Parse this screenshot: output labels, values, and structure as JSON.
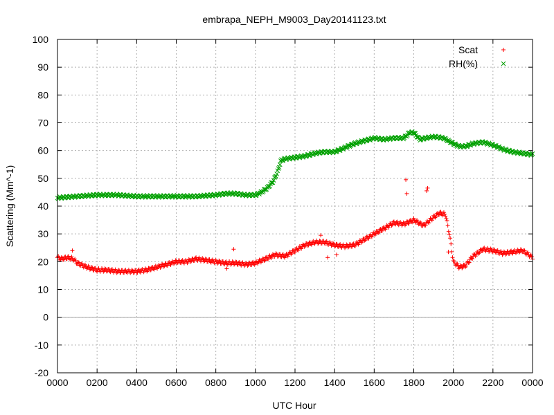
{
  "chart_data": {
    "type": "scatter",
    "title": "embrapa_NEPH_M9003_Day20141123.txt",
    "xlabel": "UTC Hour",
    "ylabel": "Scattering (Mm^-1)",
    "xlim": [
      0,
      24
    ],
    "ylim": [
      -20,
      100
    ],
    "x_ticks": [
      0,
      2,
      4,
      6,
      8,
      10,
      12,
      14,
      16,
      18,
      20,
      22,
      24
    ],
    "x_tick_labels": [
      "0000",
      "0200",
      "0400",
      "0600",
      "0800",
      "1000",
      "1200",
      "1400",
      "1600",
      "1800",
      "2000",
      "2200",
      "0000"
    ],
    "y_ticks": [
      -20,
      -10,
      0,
      10,
      20,
      30,
      40,
      50,
      60,
      70,
      80,
      90,
      100
    ],
    "y_tick_labels": [
      "-20",
      "-10",
      "0",
      "10",
      "20",
      "30",
      "40",
      "50",
      "60",
      "70",
      "80",
      "90",
      "100"
    ],
    "grid": true,
    "zero_line": true,
    "legend_position": "top-right",
    "series": [
      {
        "name": "Scat",
        "marker": "plus",
        "color": "#ff0000",
        "x": [
          0,
          0.2,
          0.5,
          0.8,
          1.0,
          1.5,
          2.0,
          2.5,
          3.0,
          3.5,
          4.0,
          4.5,
          5.0,
          5.5,
          6.0,
          6.5,
          7.0,
          7.5,
          8.0,
          8.5,
          9.0,
          9.5,
          10.0,
          10.5,
          11.0,
          11.5,
          12.0,
          12.5,
          13.0,
          13.5,
          14.0,
          14.5,
          15.0,
          15.5,
          16.0,
          16.5,
          17.0,
          17.5,
          18.0,
          18.5,
          19.0,
          19.3,
          19.6,
          19.8,
          20.0,
          20.3,
          20.6,
          21.0,
          21.5,
          22.0,
          22.5,
          23.0,
          23.5,
          24.0
        ],
        "values": [
          21.5,
          21.0,
          21.5,
          21.0,
          19.5,
          18.0,
          17.0,
          17.0,
          16.5,
          16.5,
          16.5,
          17.0,
          18.0,
          19.0,
          20.0,
          20.0,
          21.0,
          20.5,
          20.0,
          19.5,
          19.5,
          19.0,
          19.5,
          21.0,
          22.5,
          22.0,
          24.0,
          26.0,
          27.0,
          27.0,
          26.0,
          25.5,
          26.0,
          28.0,
          30.0,
          32.0,
          34.0,
          33.5,
          35.0,
          33.0,
          36.0,
          37.5,
          37.0,
          30.0,
          20.0,
          18.0,
          18.5,
          22.0,
          24.5,
          24.0,
          23.0,
          23.5,
          24.0,
          21.5
        ],
        "outliers_x": [
          0.75,
          8.55,
          8.9,
          13.3,
          13.65,
          14.1,
          17.6,
          17.65,
          18.65,
          18.7,
          19.75
        ],
        "outliers_y": [
          24.0,
          17.5,
          24.5,
          29.5,
          21.5,
          22.5,
          49.5,
          44.5,
          45.5,
          46.5,
          23.5
        ]
      },
      {
        "name": "RH(%)",
        "marker": "cross",
        "color": "#00a000",
        "x": [
          0,
          1.0,
          2.0,
          3.0,
          4.0,
          5.0,
          6.0,
          7.0,
          8.0,
          8.5,
          9.0,
          9.5,
          10.0,
          10.3,
          10.6,
          10.9,
          11.1,
          11.3,
          11.5,
          12.0,
          12.5,
          13.0,
          13.5,
          14.0,
          14.5,
          15.0,
          15.5,
          16.0,
          16.5,
          17.0,
          17.5,
          17.8,
          18.0,
          18.3,
          18.6,
          19.0,
          19.5,
          20.0,
          20.3,
          20.6,
          21.0,
          21.5,
          22.0,
          22.5,
          23.0,
          23.5,
          24.0
        ],
        "values": [
          43.0,
          43.5,
          44.0,
          44.0,
          43.5,
          43.5,
          43.5,
          43.5,
          44.0,
          44.5,
          44.5,
          44.0,
          44.0,
          45.0,
          46.5,
          49.0,
          52.0,
          56.5,
          57.0,
          57.5,
          58.0,
          59.0,
          59.5,
          59.5,
          61.0,
          62.5,
          63.5,
          64.5,
          64.0,
          64.5,
          64.5,
          66.5,
          66.5,
          64.0,
          64.5,
          65.0,
          64.5,
          62.5,
          61.5,
          61.5,
          62.5,
          63.0,
          62.0,
          60.5,
          59.5,
          59.0,
          58.5
        ]
      }
    ]
  }
}
